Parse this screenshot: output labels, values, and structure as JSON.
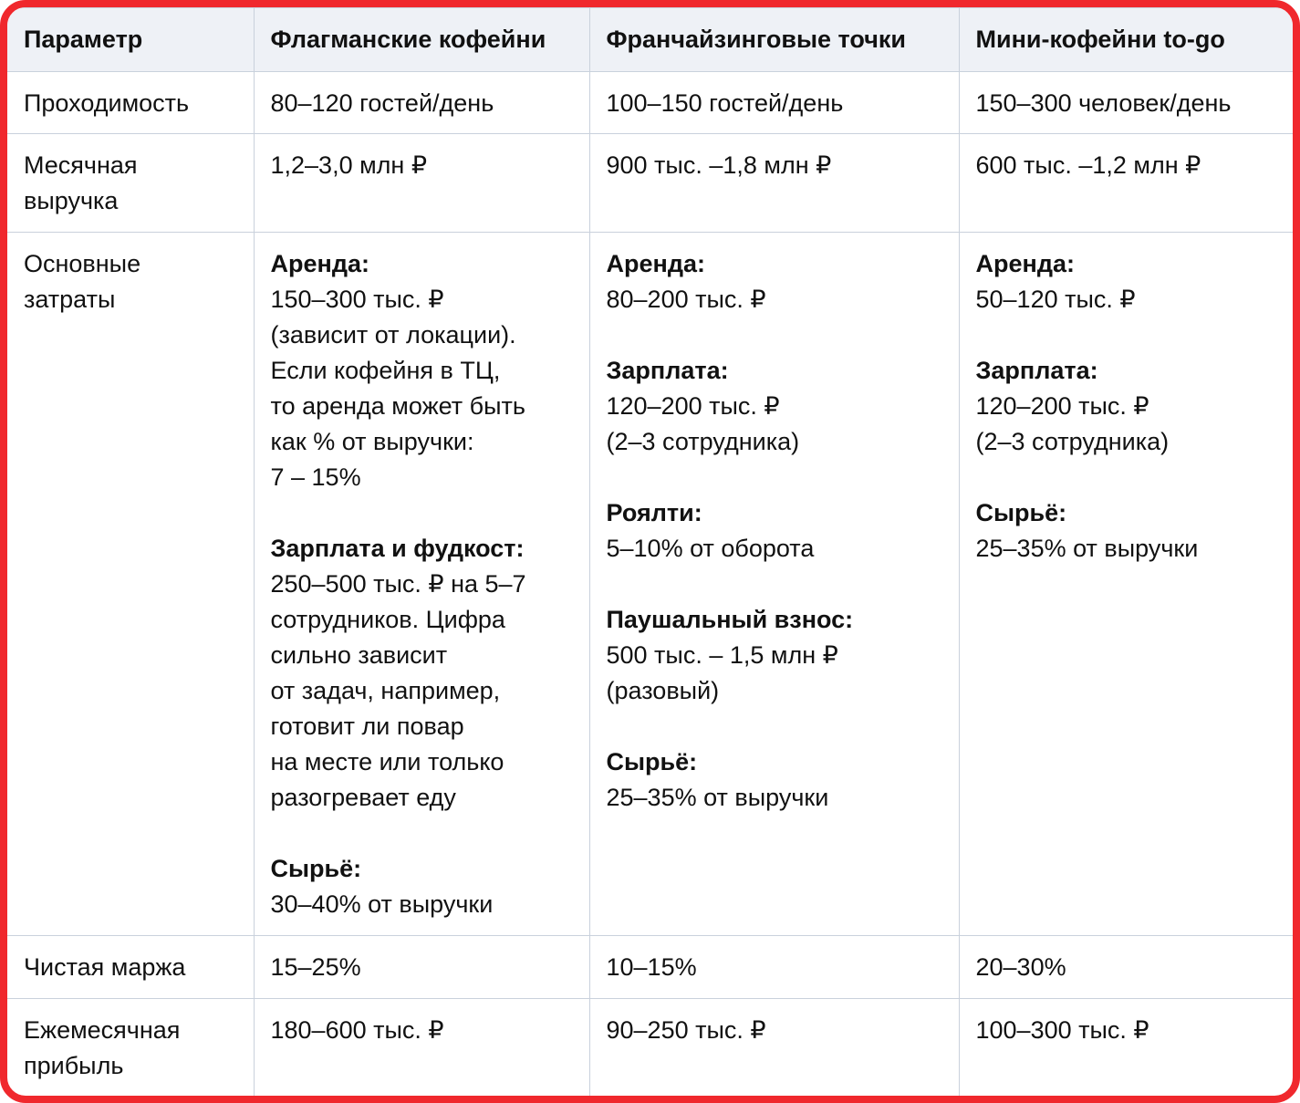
{
  "table": {
    "header": [
      "Параметр",
      "Флагманские кофейни",
      "Франчайзинговые точки",
      "Мини-кофейни to-go"
    ],
    "rows": [
      [
        [
          {
            "lines": [
              "Проходимость"
            ]
          }
        ],
        [
          {
            "lines": [
              "80–120 гостей/день"
            ]
          }
        ],
        [
          {
            "lines": [
              "100–150 гостей/день"
            ]
          }
        ],
        [
          {
            "lines": [
              "150–300 человек/день"
            ]
          }
        ]
      ],
      [
        [
          {
            "lines": [
              "Месячная",
              "выручка"
            ]
          }
        ],
        [
          {
            "lines": [
              "1,2–3,0 млн ₽"
            ]
          }
        ],
        [
          {
            "lines": [
              "900 тыс. –1,8 млн ₽"
            ]
          }
        ],
        [
          {
            "lines": [
              "600 тыс. –1,2 млн ₽"
            ]
          }
        ]
      ],
      [
        [
          {
            "lines": [
              "Основные",
              "затраты"
            ]
          }
        ],
        [
          {
            "heading": "Аренда:",
            "lines": [
              "150–300 тыс. ₽",
              "(зависит от локации).",
              "Если кофейня в ТЦ,",
              "то аренда может быть",
              "как % от выручки:",
              "7 – 15%"
            ]
          },
          {
            "heading": "Зарплата и фудкост:",
            "lines": [
              "250–500 тыс. ₽ на 5–7",
              "сотрудников. Цифра",
              "сильно зависит",
              "от задач, например,",
              "готовит ли повар",
              "на месте или только",
              "разогревает еду"
            ]
          },
          {
            "heading": "Сырьё:",
            "lines": [
              "30–40% от выручки"
            ]
          }
        ],
        [
          {
            "heading": "Аренда:",
            "lines": [
              "80–200 тыс. ₽"
            ]
          },
          {
            "heading": "Зарплата:",
            "lines": [
              "120–200 тыс. ₽",
              "(2–3 сотрудника)"
            ]
          },
          {
            "heading": "Роялти:",
            "lines": [
              "5–10% от оборота"
            ]
          },
          {
            "heading": "Паушальный взнос:",
            "lines": [
              "500 тыс. – 1,5 млн ₽",
              "(разовый)"
            ]
          },
          {
            "heading": "Сырьё:",
            "lines": [
              "25–35% от выручки"
            ]
          }
        ],
        [
          {
            "heading": "Аренда:",
            "lines": [
              "50–120 тыс. ₽"
            ]
          },
          {
            "heading": "Зарплата:",
            "lines": [
              "120–200 тыс. ₽",
              "(2–3 сотрудника)"
            ]
          },
          {
            "heading": "Сырьё:",
            "lines": [
              "25–35% от выручки"
            ]
          }
        ]
      ],
      [
        [
          {
            "lines": [
              "Чистая маржа"
            ]
          }
        ],
        [
          {
            "lines": [
              "15–25%"
            ]
          }
        ],
        [
          {
            "lines": [
              "10–15%"
            ]
          }
        ],
        [
          {
            "lines": [
              "20–30%"
            ]
          }
        ]
      ],
      [
        [
          {
            "lines": [
              "Ежемесячная",
              "прибыль"
            ]
          }
        ],
        [
          {
            "lines": [
              "180–600 тыс. ₽"
            ]
          }
        ],
        [
          {
            "lines": [
              "90–250 тыс. ₽"
            ]
          }
        ],
        [
          {
            "lines": [
              "100–300 тыс. ₽"
            ]
          }
        ]
      ]
    ]
  }
}
